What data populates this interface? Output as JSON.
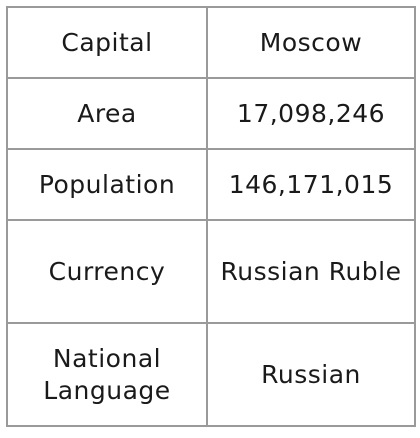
{
  "table": {
    "rows": [
      {
        "label": "Capital",
        "value": "Moscow"
      },
      {
        "label": "Area",
        "value": "17,098,246"
      },
      {
        "label": "Population",
        "value": "146,171,015"
      },
      {
        "label": "Currency",
        "value": "Russian Ruble"
      },
      {
        "label": "National Language",
        "value": "Russian"
      }
    ]
  }
}
